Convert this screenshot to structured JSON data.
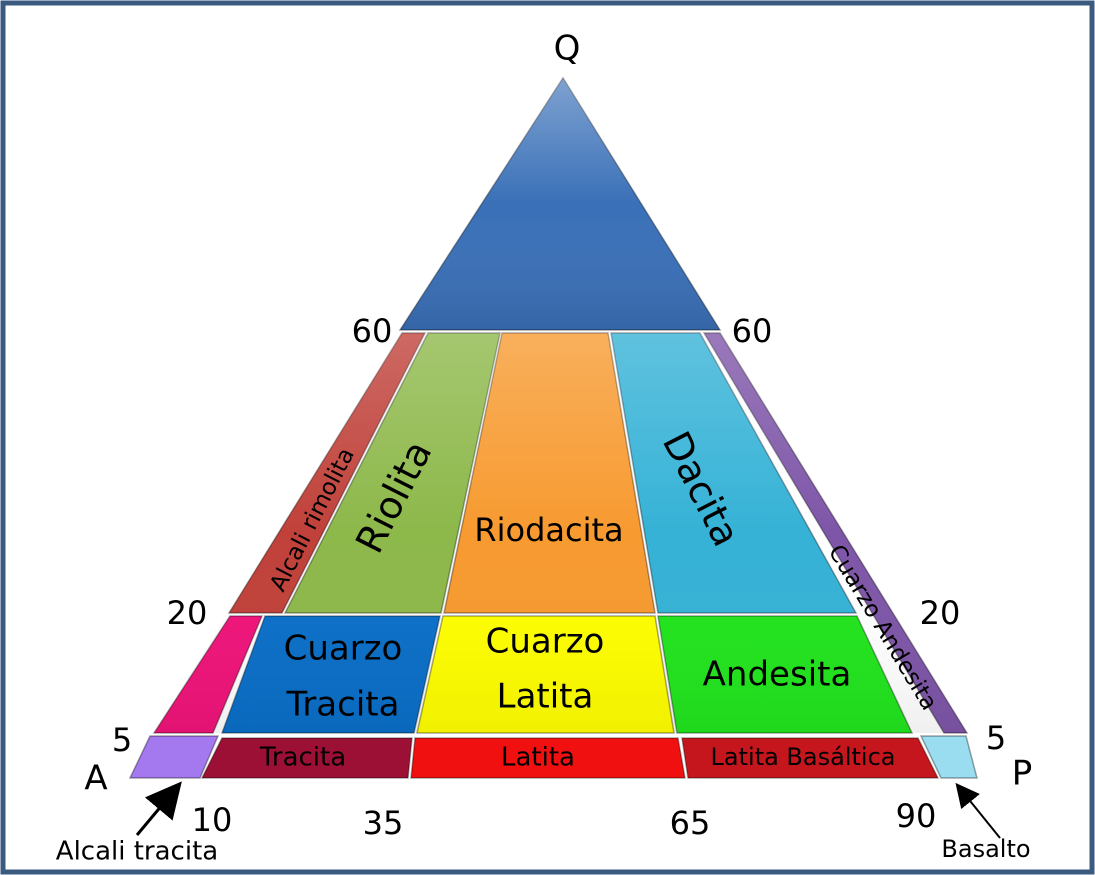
{
  "vertices": {
    "top": "Q",
    "left": "A",
    "right": "P"
  },
  "ticks": {
    "left_60": "60",
    "right_60": "60",
    "left_20": "20",
    "right_20": "20",
    "left_5": "5",
    "right_5": "5",
    "base": [
      "10",
      "35",
      "65",
      "90"
    ]
  },
  "regions": {
    "alcali_rimolita": "Alcali rimolita",
    "riolita": "Riolita",
    "riodacita": "Riodacita",
    "dacita": "Dacita",
    "cuarzo_andesita": "Cuarzo Andesita",
    "cuarzo_tracita": [
      "Cuarzo",
      "Tracita"
    ],
    "cuarzo_latita": [
      "Cuarzo",
      "Latita"
    ],
    "andesita": "Andesita",
    "tracita": "Tracita",
    "latita": "Latita",
    "latita_basaltica": "Latita Basáltica"
  },
  "callouts": {
    "alcali_tracita": "Alcali tracita",
    "basalto": "Basalto"
  }
}
